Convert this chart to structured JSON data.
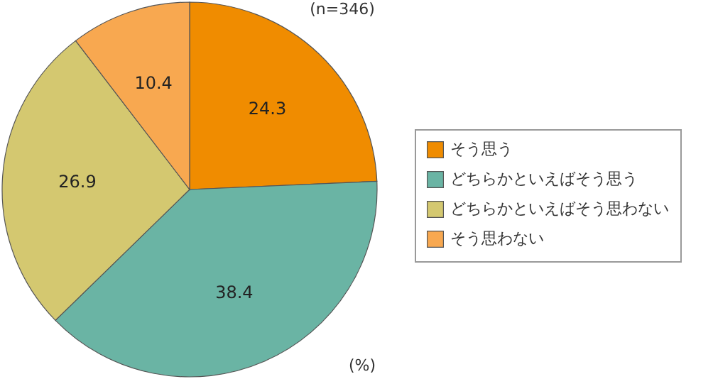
{
  "chart_data": {
    "type": "pie",
    "categories": [
      "そう思う",
      "どちらかといえばそう思う",
      "どちらかといえばそう思わない",
      "そう思わない"
    ],
    "values": [
      24.3,
      38.4,
      26.9,
      10.4
    ],
    "colors": [
      "#f08c00",
      "#6ab4a4",
      "#d4c870",
      "#f8a850"
    ],
    "data_labels": true,
    "legend": "right",
    "annotations": [
      "(n=346)",
      "(%)"
    ]
  }
}
